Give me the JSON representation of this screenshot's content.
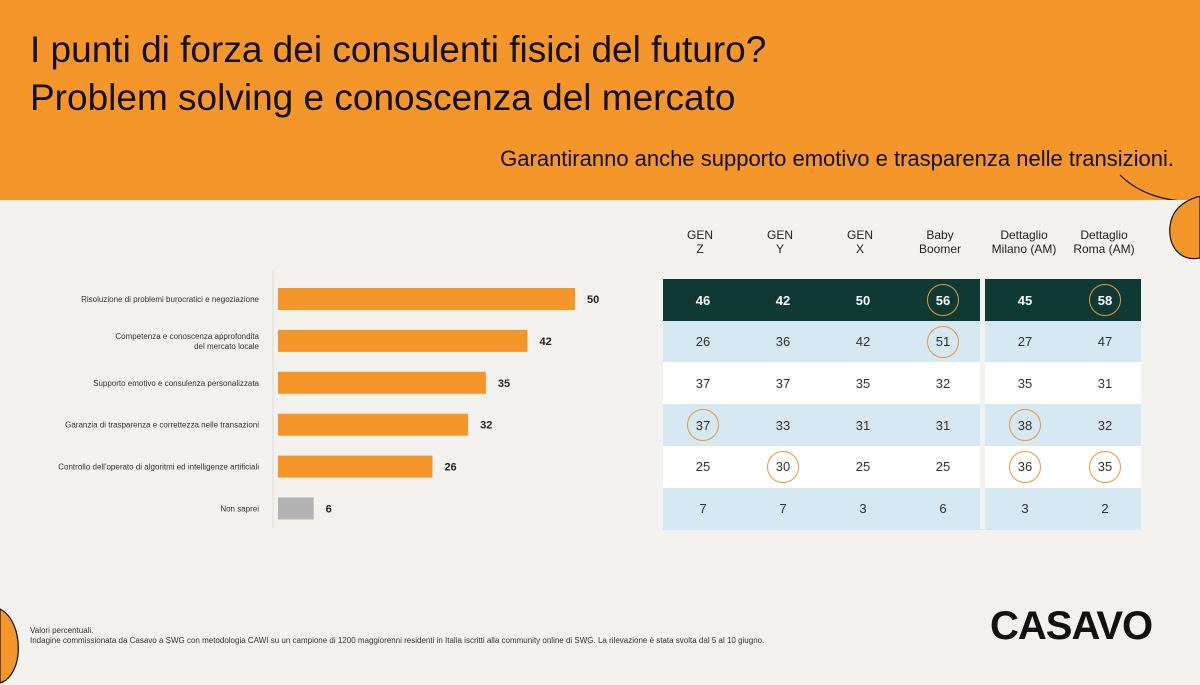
{
  "header": {
    "title_line1": "I punti di forza dei consulenti fisici del futuro?",
    "title_line2": "Problem solving e conoscenza del mercato",
    "subtitle": "Garantiranno anche supporto emotivo e trasparenza nelle transizioni."
  },
  "colors": {
    "banner": "#f5962b",
    "bar": "#f5962b",
    "bar_neutral": "#b3b3b3",
    "row_dark": "#0e3a33",
    "row_light": "#d6e9f3",
    "row_white": "#ffffff",
    "ring": "#e8963a"
  },
  "chart_data": {
    "type": "bar",
    "orientation": "horizontal",
    "categories": [
      [
        "Risoluzione di problemi burocratici e negoziazione"
      ],
      [
        "Competenza e conoscenza approfondita",
        "del mercato locale"
      ],
      [
        "Supporto emotivo e consulenza personalizzata"
      ],
      [
        "Garanzia di trasparenza e correttezza nelle transazioni"
      ],
      [
        "Controllo dell'operato di algoritmi ed intelligenze artificiali"
      ],
      [
        "Non saprei"
      ]
    ],
    "values": [
      50,
      42,
      35,
      32,
      26,
      6
    ],
    "xlim": [
      0,
      50
    ]
  },
  "table": {
    "columns": [
      [
        "GEN",
        "Z"
      ],
      [
        "GEN",
        "Y"
      ],
      [
        "GEN",
        "X"
      ],
      [
        "Baby",
        "Boomer"
      ],
      [
        "Dettaglio",
        "Milano (AM)"
      ],
      [
        "Dettaglio",
        "Roma (AM)"
      ]
    ],
    "rows": [
      [
        "46",
        "42",
        "50",
        "56",
        "45",
        "58"
      ],
      [
        "26",
        "36",
        "42",
        "51",
        "27",
        "47"
      ],
      [
        "37",
        "37",
        "35",
        "32",
        "35",
        "31"
      ],
      [
        "37",
        "33",
        "31",
        "31",
        "38",
        "32"
      ],
      [
        "25",
        "30",
        "25",
        "25",
        "36",
        "35"
      ],
      [
        "7",
        "7",
        "3",
        "6",
        "3",
        "2"
      ]
    ],
    "highlighted": [
      [
        0,
        3
      ],
      [
        0,
        5
      ],
      [
        1,
        3
      ],
      [
        3,
        0
      ],
      [
        3,
        4
      ],
      [
        4,
        1
      ],
      [
        4,
        4
      ],
      [
        4,
        5
      ]
    ]
  },
  "footer": {
    "note_line1": "Valori percentuali.",
    "note_line2": "Indagine commissionata da Casavo a SWG con metodologia CAWI su un campione di 1200 maggiorenni residenti in Italia iscritti alla community online di SWG. La rilevazione è stata svolta dal 5 al 10 giugno.",
    "logo": "CASAVO"
  }
}
